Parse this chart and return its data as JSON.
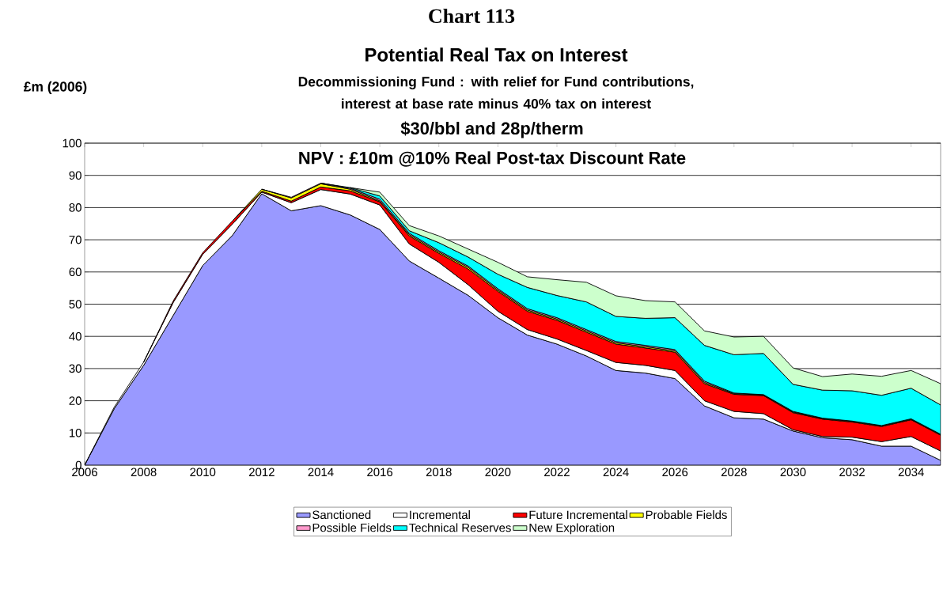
{
  "chart_data": {
    "type": "area",
    "stacked": true,
    "title": "Potential Real Tax on Interest",
    "subtitle": "Decommissioning Fund : with relief for Fund contributions, interest at base rate minus 40% tax on interest",
    "ylabel": "£m (2006)",
    "annotations": [
      "Chart 113",
      "$30/bbl and 28p/therm",
      "NPV : £10m @10% Real Post-tax Discount Rate"
    ],
    "x": [
      2006,
      2007,
      2008,
      2009,
      2010,
      2011,
      2012,
      2013,
      2014,
      2015,
      2016,
      2017,
      2018,
      2019,
      2020,
      2021,
      2022,
      2023,
      2024,
      2025,
      2026,
      2027,
      2028,
      2029,
      2030,
      2031,
      2032,
      2033,
      2034,
      2035
    ],
    "xlim": [
      2006,
      2035
    ],
    "xticks": [
      2006,
      2008,
      2010,
      2012,
      2014,
      2016,
      2018,
      2020,
      2022,
      2024,
      2026,
      2028,
      2030,
      2032,
      2034
    ],
    "ylim": [
      0,
      100
    ],
    "yticks": [
      0,
      10,
      20,
      30,
      40,
      50,
      60,
      70,
      80,
      90,
      100
    ],
    "grid": "y",
    "legend": "bottom",
    "series": [
      {
        "name": "Sanctioned",
        "color": "#9999ff",
        "values": [
          0,
          17.5,
          31,
          46.5,
          62,
          71.3,
          84.3,
          79.0,
          80.6,
          77.7,
          73.2,
          63.4,
          58.1,
          52.7,
          45.8,
          40.4,
          37.6,
          33.9,
          29.4,
          28.6,
          26.9,
          18.4,
          14.7,
          14.3,
          10.6,
          8.5,
          7.9,
          5.9,
          5.9,
          1.5
        ]
      },
      {
        "name": "Incremental",
        "color": "#ffffff",
        "values": [
          0,
          0.5,
          1,
          4,
          3.5,
          3.5,
          0.5,
          2.5,
          5,
          6.5,
          7.6,
          5.3,
          4.9,
          3.3,
          2.0,
          1.7,
          1.6,
          1.7,
          2.5,
          2.4,
          2.5,
          1.6,
          2.0,
          1.7,
          0.4,
          0.4,
          0.8,
          1.4,
          3.0,
          2.9
        ]
      },
      {
        "name": "Future Incremental",
        "color": "#ff0000",
        "values": [
          null,
          null,
          0,
          0.5,
          0.5,
          1.0,
          0.3,
          0.5,
          0.8,
          1.0,
          1.0,
          2.5,
          2.8,
          4.9,
          6.2,
          5.7,
          5.8,
          5.7,
          5.7,
          5.4,
          5.7,
          5.3,
          5.3,
          5.6,
          5.3,
          5.4,
          4.7,
          4.7,
          5.2,
          4.9
        ]
      },
      {
        "name": "Probable Fields",
        "color": "#ffff00",
        "values": [
          null,
          null,
          null,
          null,
          null,
          0,
          0.6,
          1.0,
          1.0,
          0.5,
          0.3,
          0.4,
          0.4,
          0.5,
          0.4,
          0.4,
          0.4,
          0.4,
          0.4,
          0.4,
          0.4,
          0.4,
          0.2,
          0.2,
          0.2,
          0.2,
          0.2,
          0.2,
          0.2,
          0.2
        ]
      },
      {
        "name": "Possible Fields",
        "color": "#ff99cc",
        "values": [
          null,
          null,
          null,
          null,
          null,
          null,
          0,
          0.2,
          0.2,
          0.3,
          0.5,
          0.4,
          0.4,
          0.4,
          0.4,
          0.4,
          0.4,
          0.4,
          0.4,
          0.4,
          0.4,
          0.4,
          0.2,
          0.1,
          0.2,
          0.1,
          0.1,
          0.1,
          0.1,
          0.1
        ]
      },
      {
        "name": "Technical Reserves",
        "color": "#00ffff",
        "values": [
          null,
          null,
          null,
          null,
          null,
          null,
          null,
          null,
          0,
          0.2,
          1.0,
          0.8,
          2.5,
          2.8,
          4.5,
          6.6,
          6.9,
          8.6,
          7.8,
          8.4,
          9.9,
          11.1,
          11.9,
          12.8,
          8.4,
          8.7,
          9.4,
          9.4,
          9.5,
          9.1
        ]
      },
      {
        "name": "New Exploration",
        "color": "#ccffcc",
        "values": [
          null,
          null,
          null,
          null,
          null,
          null,
          null,
          null,
          null,
          0,
          1.2,
          1.6,
          2.1,
          2.5,
          3.7,
          3.3,
          4.9,
          6.1,
          6.4,
          5.5,
          4.9,
          4.5,
          5.5,
          5.3,
          5.1,
          4.2,
          5.2,
          5.9,
          5.5,
          6.6
        ]
      }
    ]
  }
}
